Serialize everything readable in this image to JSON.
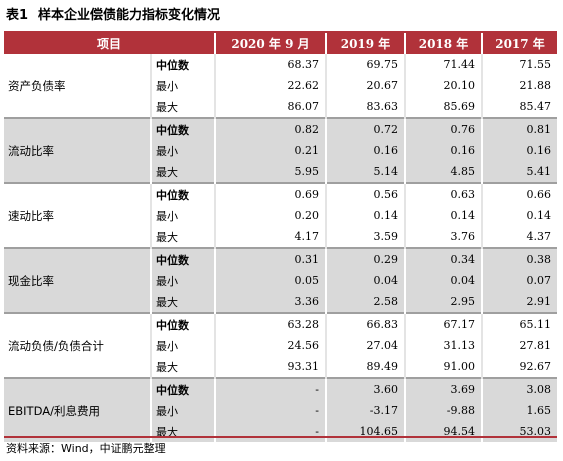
{
  "title": {
    "number": "表1",
    "text": "样本企业偿债能力指标变化情况"
  },
  "table": {
    "headers": [
      "项目",
      "",
      "2020 年 9 月",
      "2019 年",
      "2018 年",
      "2017 年"
    ],
    "groups": [
      {
        "name": "资产负债率",
        "rows": [
          {
            "label": "中位数",
            "values": [
              "68.37",
              "69.75",
              "71.44",
              "71.55"
            ]
          },
          {
            "label": "最小",
            "values": [
              "22.62",
              "20.67",
              "20.10",
              "21.88"
            ]
          },
          {
            "label": "最大",
            "values": [
              "86.07",
              "83.63",
              "85.69",
              "85.47"
            ]
          }
        ]
      },
      {
        "name": "流动比率",
        "rows": [
          {
            "label": "中位数",
            "values": [
              "0.82",
              "0.72",
              "0.76",
              "0.81"
            ]
          },
          {
            "label": "最小",
            "values": [
              "0.21",
              "0.16",
              "0.16",
              "0.16"
            ]
          },
          {
            "label": "最大",
            "values": [
              "5.95",
              "5.14",
              "4.85",
              "5.41"
            ]
          }
        ]
      },
      {
        "name": "速动比率",
        "rows": [
          {
            "label": "中位数",
            "values": [
              "0.69",
              "0.56",
              "0.63",
              "0.66"
            ]
          },
          {
            "label": "最小",
            "values": [
              "0.20",
              "0.14",
              "0.14",
              "0.14"
            ]
          },
          {
            "label": "最大",
            "values": [
              "4.17",
              "3.59",
              "3.76",
              "4.37"
            ]
          }
        ]
      },
      {
        "name": "现金比率",
        "rows": [
          {
            "label": "中位数",
            "values": [
              "0.31",
              "0.29",
              "0.34",
              "0.38"
            ]
          },
          {
            "label": "最小",
            "values": [
              "0.05",
              "0.04",
              "0.04",
              "0.07"
            ]
          },
          {
            "label": "最大",
            "values": [
              "3.36",
              "2.58",
              "2.95",
              "2.91"
            ]
          }
        ]
      },
      {
        "name": "流动负债/负债合计",
        "rows": [
          {
            "label": "中位数",
            "values": [
              "63.28",
              "66.83",
              "67.17",
              "65.11"
            ]
          },
          {
            "label": "最小",
            "values": [
              "24.56",
              "27.04",
              "31.13",
              "27.81"
            ]
          },
          {
            "label": "最大",
            "values": [
              "93.31",
              "89.49",
              "91.00",
              "92.67"
            ]
          }
        ]
      },
      {
        "name": "EBITDA/利息费用",
        "rows": [
          {
            "label": "中位数",
            "values": [
              "-",
              "3.60",
              "3.69",
              "3.08"
            ]
          },
          {
            "label": "最小",
            "values": [
              "-",
              "-3.17",
              "-9.88",
              "1.65"
            ]
          },
          {
            "label": "最大",
            "values": [
              "-",
              "104.65",
              "94.54",
              "53.03"
            ]
          }
        ]
      }
    ]
  },
  "source": "资料来源：Wind，中证鹏元整理"
}
